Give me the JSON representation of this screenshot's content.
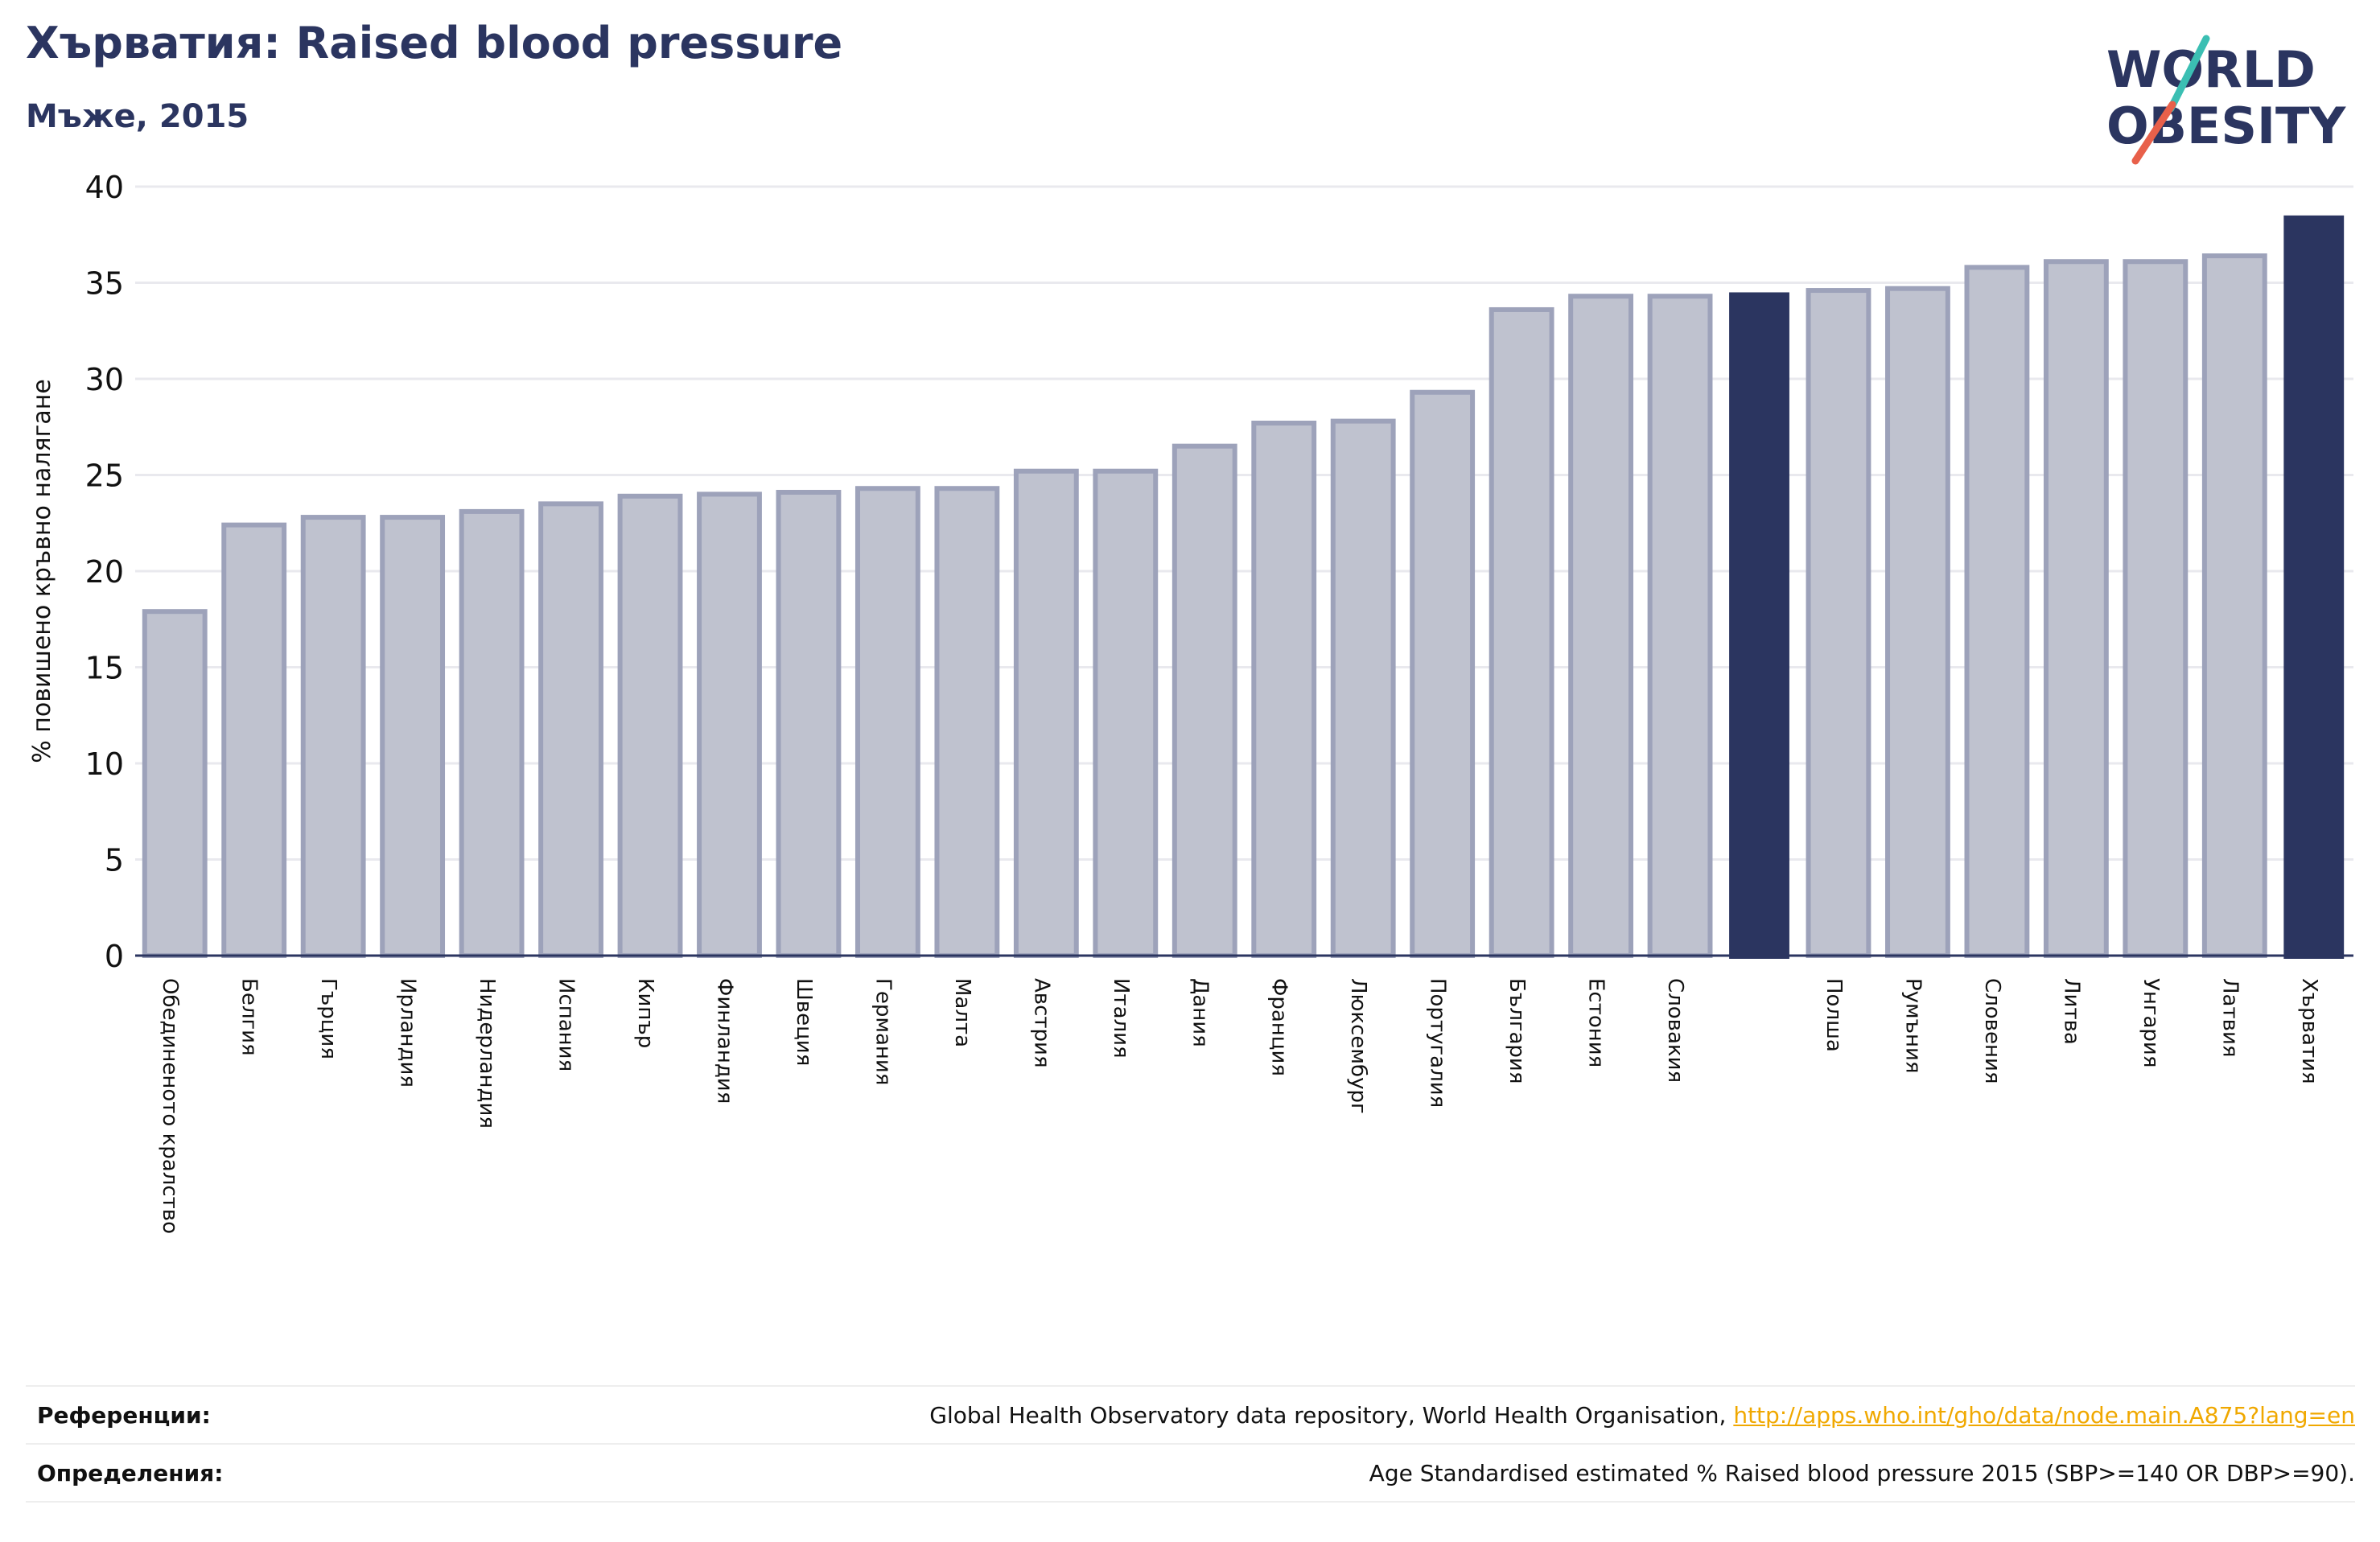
{
  "header": {
    "title": "Хърватия: Raised blood pressure",
    "subtitle": "Мъже, 2015"
  },
  "logo": {
    "line1": "WORLD",
    "line2": "OBESITY"
  },
  "colors": {
    "bar_fill": "#bfc2cf",
    "bar_stroke": "#9da2ba",
    "highlight": "#2b3560",
    "grid": "#e9e9ee",
    "logo_teal": "#3bbfb3",
    "logo_red": "#e8604a"
  },
  "chart_data": {
    "type": "bar",
    "title": "Хърватия: Raised blood pressure",
    "subtitle": "Мъже, 2015",
    "xlabel": "",
    "ylabel": "% повишено кръвно налягане",
    "ylim": [
      0,
      40
    ],
    "yticks": [
      0,
      5,
      10,
      15,
      20,
      25,
      30,
      35,
      40
    ],
    "grid": true,
    "legend": "none",
    "categories": [
      "Обединеното кралство",
      "Белгия",
      "Гърция",
      "Ирландия",
      "Нидерландия",
      "Испания",
      "Кипър",
      "Финландия",
      "Швеция",
      "Германия",
      "Малта",
      "Австрия",
      "Италия",
      "Дания",
      "Франция",
      "Люксембург",
      "Португалия",
      "България",
      "Естония",
      "Словакия",
      "",
      "Полша",
      "Румъния",
      "Словения",
      "Литва",
      "Унгария",
      "Латвия",
      "Хърватия"
    ],
    "values": [
      17.9,
      22.4,
      22.8,
      22.8,
      23.1,
      23.5,
      23.9,
      24.0,
      24.1,
      24.3,
      24.3,
      25.2,
      25.2,
      26.5,
      27.7,
      27.8,
      29.3,
      33.6,
      34.3,
      34.3,
      34.5,
      34.6,
      34.7,
      35.8,
      36.1,
      36.1,
      36.4,
      38.5
    ],
    "highlighted": [
      20,
      27
    ]
  },
  "references": {
    "ref_label": "Референции:",
    "ref_text": "Global Health Observatory data repository, World Health Organisation, ",
    "ref_link": "http://apps.who.int/gho/data/node.main.A875?lang=en",
    "def_label": "Определения:",
    "def_text": "Age Standardised estimated % Raised blood pressure 2015 (SBP>=140 OR DBP>=90)."
  }
}
